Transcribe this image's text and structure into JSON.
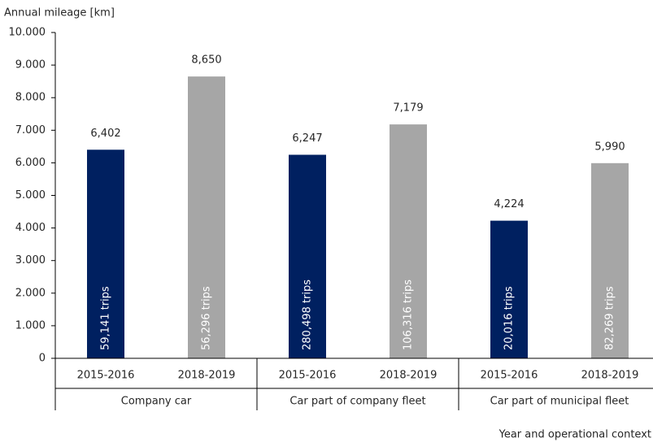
{
  "chart_data": {
    "type": "bar",
    "y_axis_title": "Annual mileage [km]",
    "x_axis_title": "Year and operational context",
    "categories": [
      "2015-2016",
      "2018-2019",
      "2015-2016",
      "2018-2019",
      "2015-2016",
      "2018-2019"
    ],
    "groups": [
      "Company car",
      "Car part of company fleet",
      "Car part of municipal fleet"
    ],
    "values": [
      6402,
      8650,
      6247,
      7179,
      4224,
      5990
    ],
    "value_labels": [
      "6,402",
      "8,650",
      "6,247",
      "7,179",
      "4,224",
      "5,990"
    ],
    "bar_labels": [
      "59,141 trips",
      "56,296 trips",
      "280,498 trips",
      "106,316 trips",
      "20,016 trips",
      "82,269 trips"
    ],
    "colors": [
      "#002060",
      "#a6a6a6",
      "#002060",
      "#a6a6a6",
      "#002060",
      "#a6a6a6"
    ],
    "ylim": [
      0,
      10000
    ],
    "yticks": [
      0,
      {
        "value": 1000,
        "label": "1.000"
      },
      {
        "value": 2000,
        "label": "2.000"
      },
      {
        "value": 3000,
        "label": "3.000"
      },
      {
        "value": 4000,
        "label": "4.000"
      },
      {
        "value": 5000,
        "label": "5.000"
      },
      {
        "value": 6000,
        "label": "6.000"
      },
      {
        "value": 7000,
        "label": "7.000"
      },
      {
        "value": 8000,
        "label": "8.000"
      },
      {
        "value": 9000,
        "label": "9.000"
      },
      {
        "value": 10000,
        "label": "10.000"
      }
    ],
    "grid": false
  }
}
